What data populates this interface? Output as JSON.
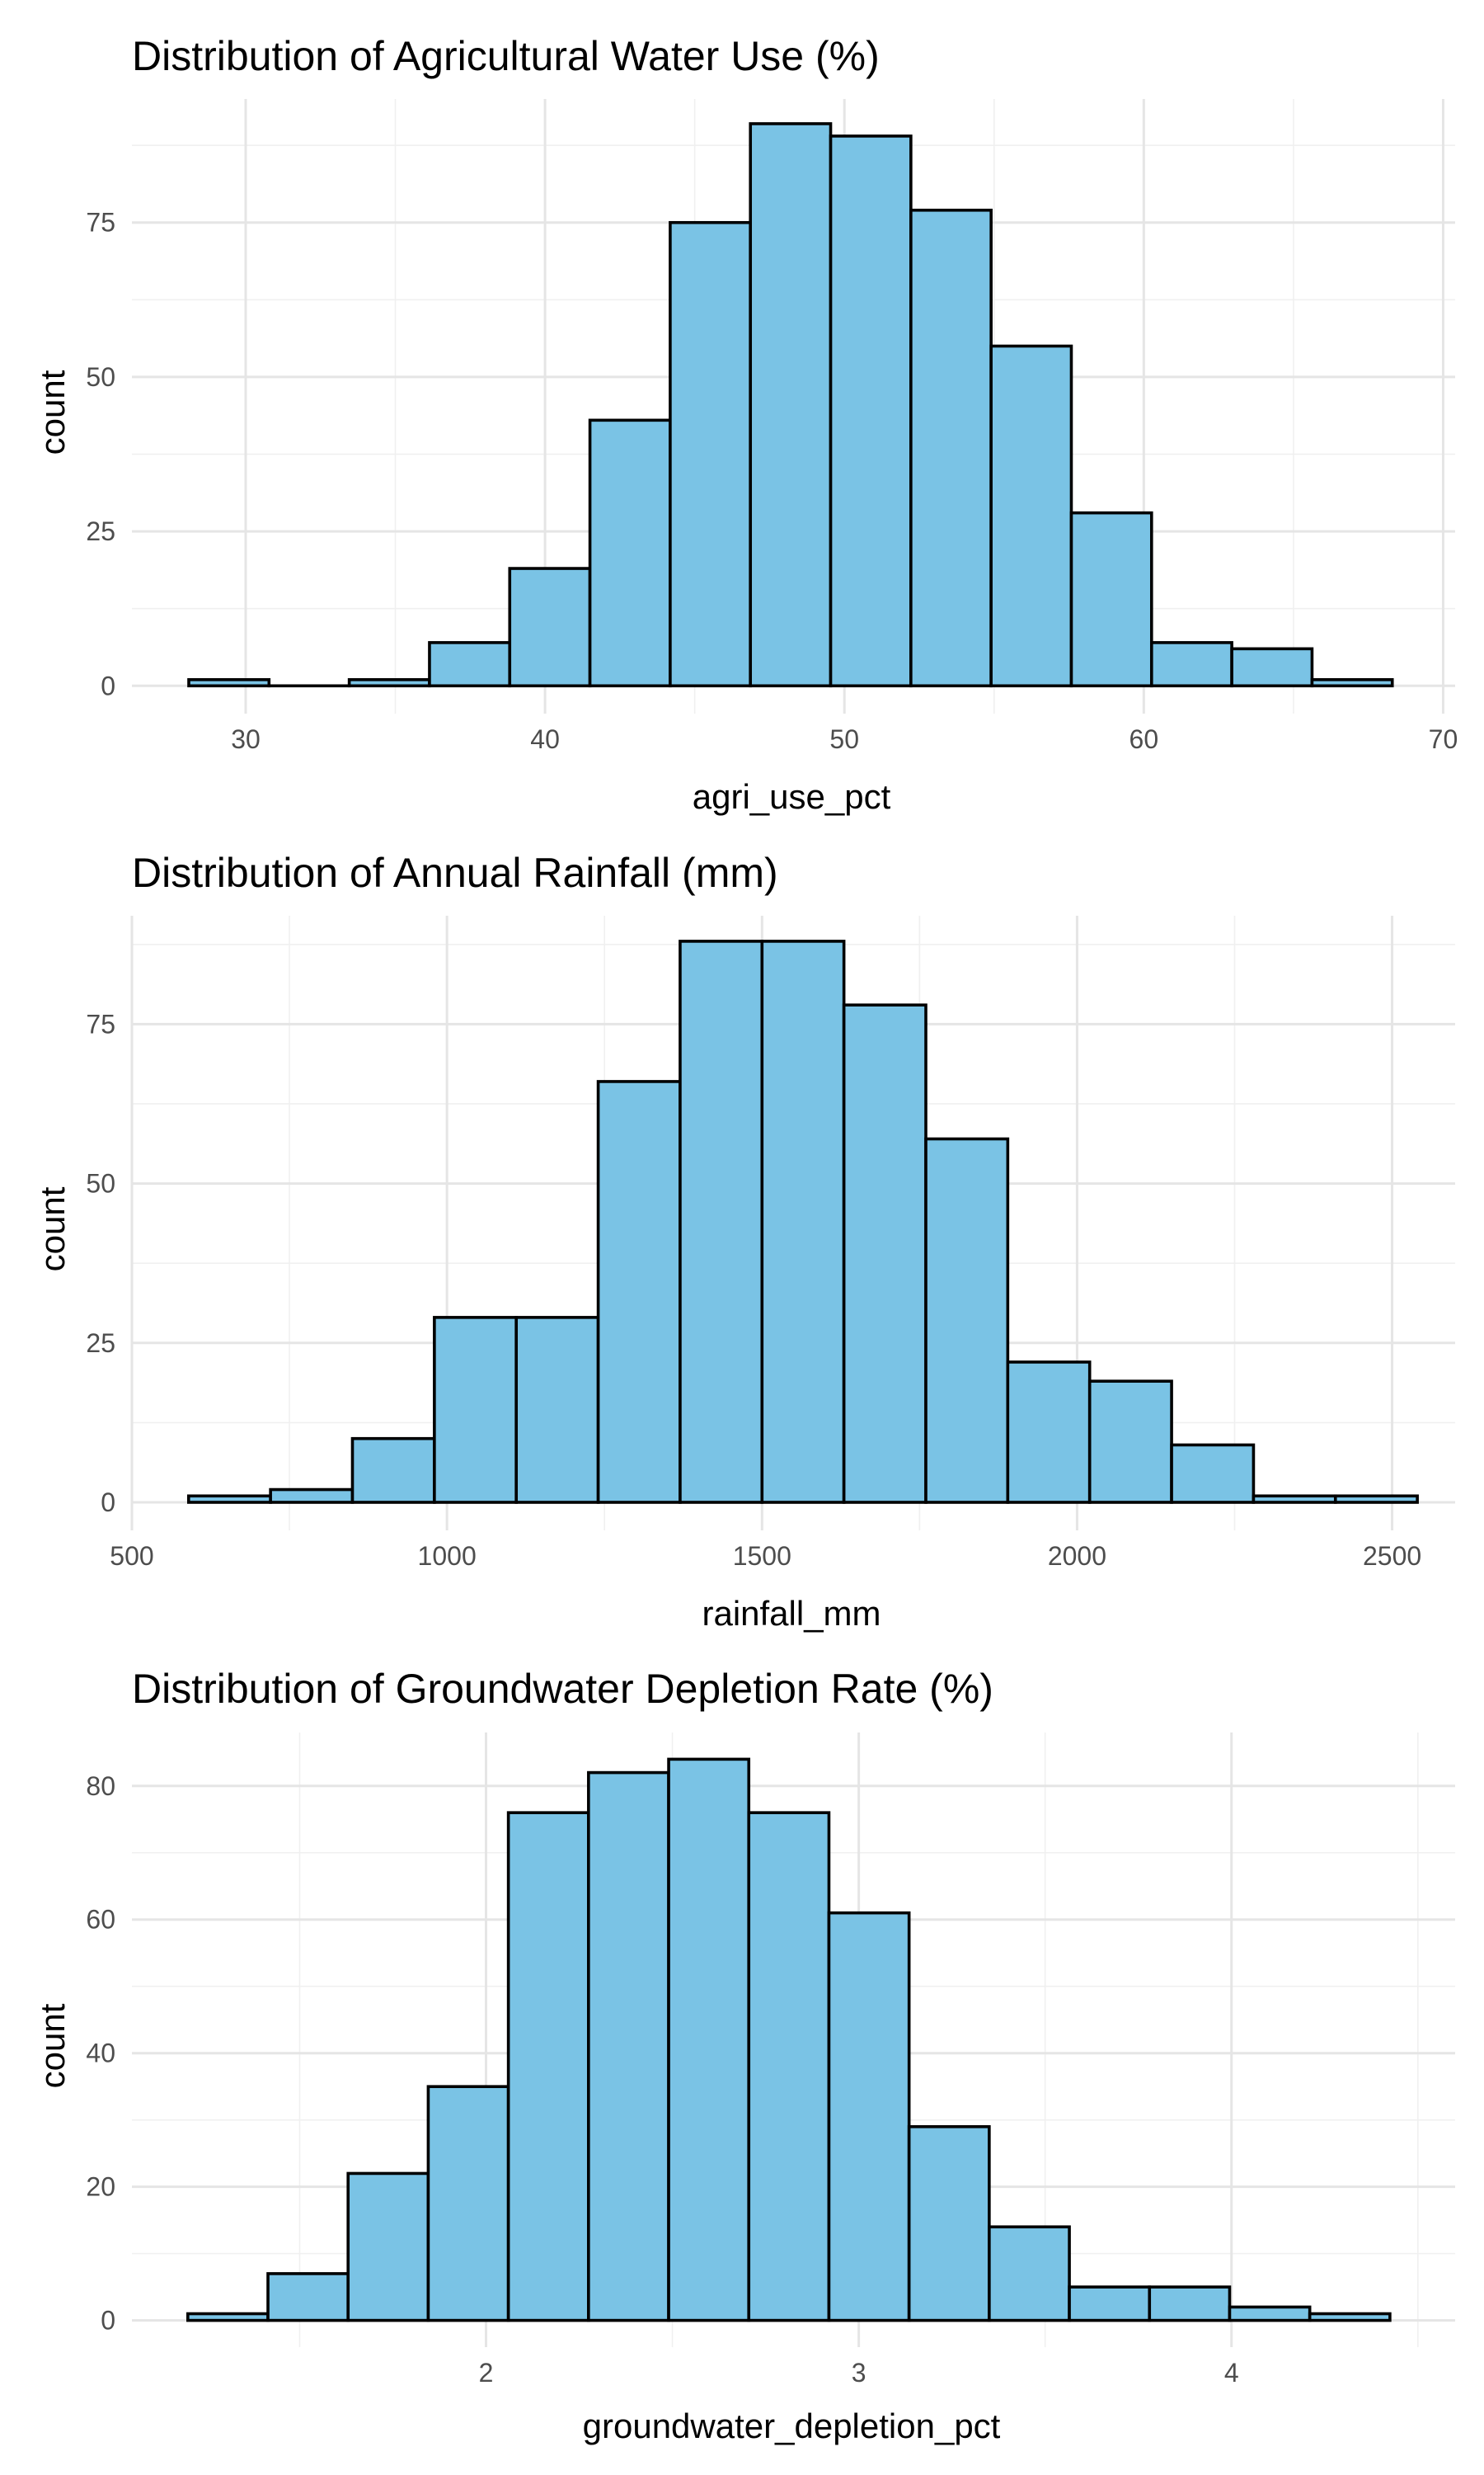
{
  "style": {
    "bar_fill": "#7AC3E5",
    "bar_stroke": "#000000",
    "grid_color": "#E5E5E5",
    "background": "#FFFFFF"
  },
  "chart_data": [
    {
      "type": "bar",
      "title": "Distribution of Agricultural Water Use (%)",
      "xlabel": "agri_use_pct",
      "ylabel": "count",
      "xlim": [
        26.2,
        70.4
      ],
      "ylim": [
        -4.5,
        95
      ],
      "x_ticks": [
        30,
        40,
        50,
        60,
        70
      ],
      "y_ticks": [
        0,
        25,
        50,
        75
      ],
      "grid": true,
      "bin_edges": [
        28.1,
        30.78,
        33.46,
        36.14,
        38.82,
        41.5,
        44.18,
        46.86,
        49.54,
        52.22,
        54.9,
        57.58,
        60.26,
        62.94,
        65.62,
        68.3
      ],
      "values": [
        1,
        0,
        1,
        7,
        19,
        43,
        75,
        91,
        89,
        77,
        55,
        28,
        7,
        6,
        1
      ]
    },
    {
      "type": "bar",
      "title": "Distribution of Annual Rainfall (mm)",
      "xlabel": "rainfall_mm",
      "ylabel": "count",
      "xlim": [
        500,
        2600
      ],
      "ylim": [
        -4.4,
        92
      ],
      "x_ticks": [
        500,
        1000,
        1500,
        2000,
        2500
      ],
      "y_ticks": [
        0,
        25,
        50,
        75
      ],
      "grid": true,
      "bin_edges": [
        590,
        720,
        850,
        980,
        1110,
        1240,
        1370,
        1500,
        1630,
        1760,
        1890,
        2020,
        2150,
        2280,
        2410,
        2540
      ],
      "values": [
        1,
        2,
        10,
        29,
        29,
        66,
        88,
        88,
        78,
        57,
        22,
        19,
        9,
        1,
        1
      ]
    },
    {
      "type": "bar",
      "title": "Distribution of Groundwater Depletion Rate (%)",
      "xlabel": "groundwater_depletion_pct",
      "ylabel": "count",
      "xlim": [
        1.05,
        4.6
      ],
      "ylim": [
        -4,
        88
      ],
      "x_ticks": [
        2,
        3,
        4
      ],
      "y_ticks": [
        0,
        20,
        40,
        60,
        80
      ],
      "grid": true,
      "bin_edges": [
        1.2,
        1.415,
        1.63,
        1.845,
        2.06,
        2.275,
        2.49,
        2.705,
        2.92,
        3.135,
        3.35,
        3.565,
        3.78,
        3.995,
        4.21,
        4.425
      ],
      "values": [
        1,
        7,
        22,
        35,
        76,
        82,
        84,
        76,
        61,
        29,
        14,
        5,
        5,
        2,
        1
      ]
    }
  ]
}
